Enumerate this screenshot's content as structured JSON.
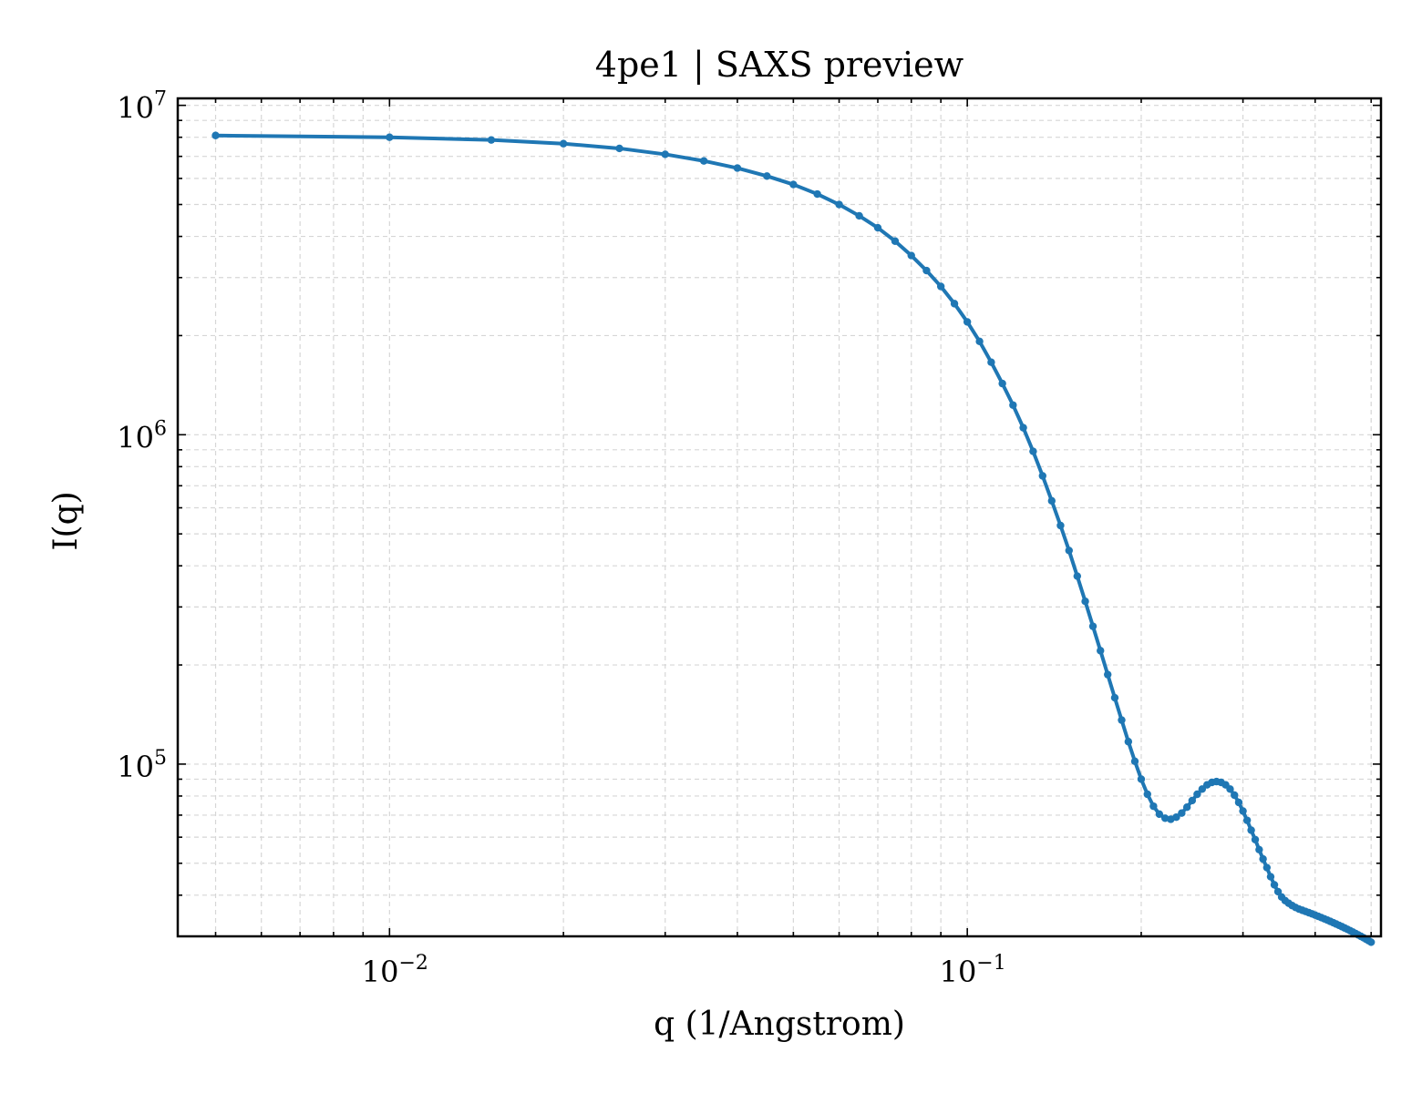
{
  "chart_data": {
    "type": "line",
    "title": "4pe1 | SAXS preview",
    "xlabel": "q (1/Angstrom)",
    "ylabel": "I(q)",
    "xscale": "log",
    "yscale": "log",
    "xlim": [
      0.0043,
      0.52
    ],
    "ylim": [
      30000,
      10500000
    ],
    "grid": true,
    "line_color": "#1f77b4",
    "x_ticks": [
      {
        "value": 0.01,
        "base": "10",
        "exp": "−2"
      },
      {
        "value": 0.1,
        "base": "10",
        "exp": "−1"
      }
    ],
    "y_ticks": [
      {
        "value": 100000,
        "base": "10",
        "exp": "5"
      },
      {
        "value": 1000000,
        "base": "10",
        "exp": "6"
      },
      {
        "value": 10000000,
        "base": "10",
        "exp": "7"
      }
    ],
    "series": [
      {
        "x": [
          0.005,
          0.01,
          0.015,
          0.02,
          0.025,
          0.03,
          0.035,
          0.04,
          0.045,
          0.05,
          0.055,
          0.06,
          0.065,
          0.07,
          0.075,
          0.08,
          0.085,
          0.09,
          0.095,
          0.1,
          0.105,
          0.11,
          0.115,
          0.12,
          0.125,
          0.13,
          0.135,
          0.14,
          0.145,
          0.15,
          0.155,
          0.16,
          0.165,
          0.17,
          0.175,
          0.18,
          0.185,
          0.19,
          0.195,
          0.2,
          0.205,
          0.21,
          0.215,
          0.22,
          0.225,
          0.23,
          0.235,
          0.24,
          0.245,
          0.25,
          0.255,
          0.26,
          0.265,
          0.27,
          0.275,
          0.28,
          0.285,
          0.29,
          0.295,
          0.3,
          0.305,
          0.31,
          0.315,
          0.32,
          0.325,
          0.33,
          0.335,
          0.34,
          0.345,
          0.35,
          0.355,
          0.36,
          0.365,
          0.37,
          0.375,
          0.38,
          0.385,
          0.39,
          0.395,
          0.4,
          0.405,
          0.41,
          0.415,
          0.42,
          0.425,
          0.43,
          0.435,
          0.44,
          0.445,
          0.45,
          0.455,
          0.46,
          0.465,
          0.47,
          0.475,
          0.48,
          0.485,
          0.49,
          0.495,
          0.5
        ],
        "y": [
          8100000,
          8000000,
          7850000,
          7650000,
          7400000,
          7100000,
          6780000,
          6450000,
          6100000,
          5750000,
          5380000,
          5000000,
          4620000,
          4250000,
          3870000,
          3500000,
          3150000,
          2820000,
          2500000,
          2200000,
          1920000,
          1660000,
          1430000,
          1230000,
          1050000,
          890000,
          750000,
          630000,
          530000,
          445000,
          372000,
          312000,
          262000,
          221000,
          187000,
          159000,
          136000,
          117000,
          102000,
          90000,
          81000,
          74500,
          70500,
          68500,
          68000,
          69000,
          71000,
          74000,
          77500,
          81000,
          84000,
          86500,
          88000,
          88500,
          88000,
          86500,
          84000,
          80500,
          76500,
          72000,
          67500,
          63000,
          59000,
          55000,
          51500,
          48500,
          45500,
          43000,
          41000,
          39500,
          38500,
          37800,
          37200,
          36700,
          36300,
          36000,
          35700,
          35400,
          35100,
          34800,
          34500,
          34200,
          33900,
          33600,
          33300,
          33000,
          32700,
          32400,
          32100,
          31800,
          31500,
          31200,
          30900,
          30600,
          30300,
          30000,
          29700,
          29400,
          29100,
          28800
        ]
      }
    ]
  }
}
